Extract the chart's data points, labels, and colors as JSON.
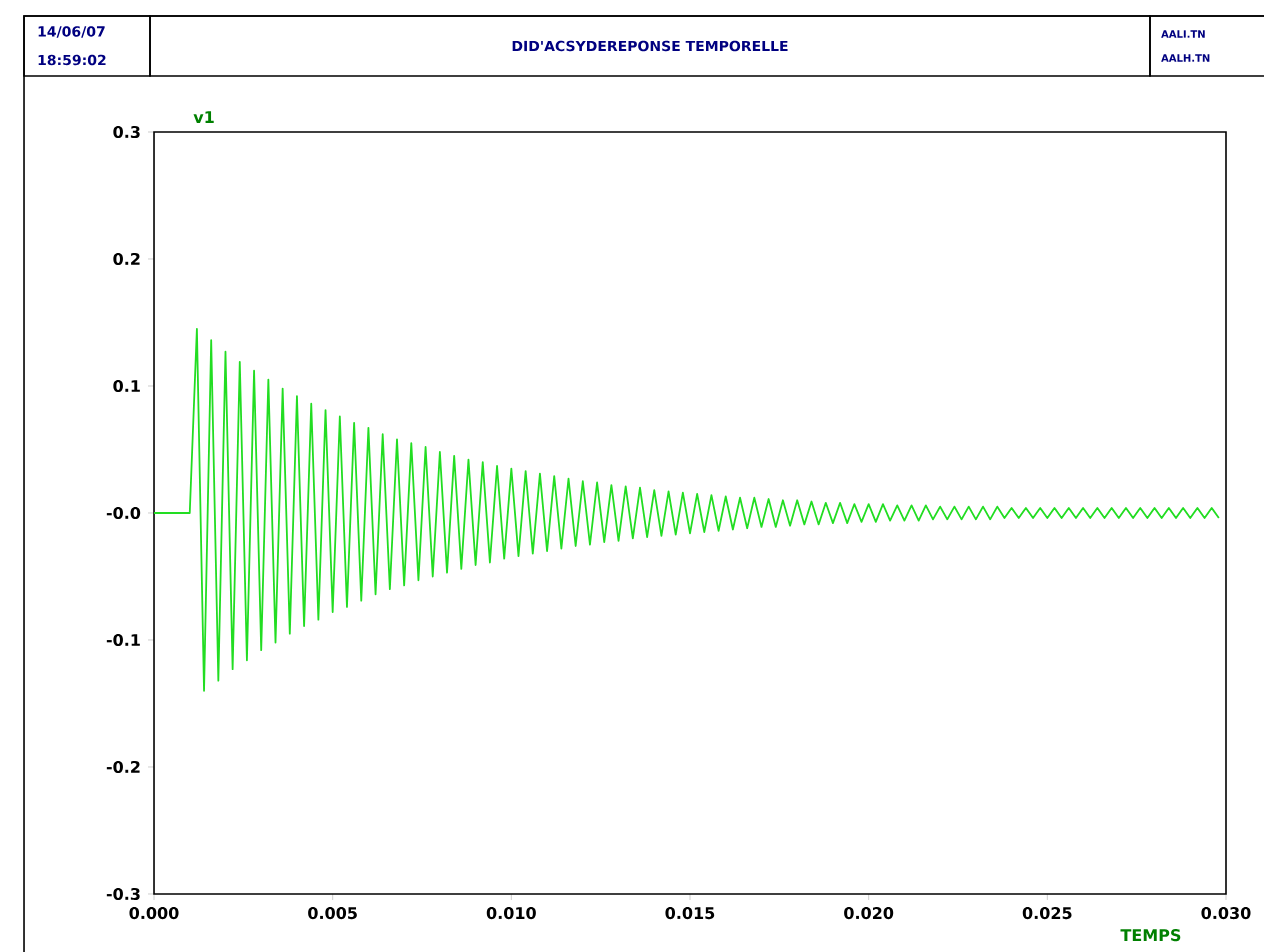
{
  "chart_data": {
    "type": "line",
    "title": "DID'ACSYDEREPONSE TEMPORELLE",
    "xlabel": "TEMPS",
    "ylabel": "v1",
    "annotations": [
      "14/06/07",
      "18:59:02",
      "AALI.TN",
      "AALH.TN"
    ],
    "color": "#22dd22",
    "marker": "none",
    "line_style": "solid",
    "xlim": [
      0,
      0.03
    ],
    "ylim": [
      -0.3,
      0.3
    ],
    "xticks": [
      {
        "value": 0,
        "label": "0.000"
      },
      {
        "value": 0.005,
        "label": "0.005"
      },
      {
        "value": 0.01,
        "label": "0.010"
      },
      {
        "value": 0.015,
        "label": "0.015"
      },
      {
        "value": 0.02,
        "label": "0.020"
      },
      {
        "value": 0.025,
        "label": "0.025"
      },
      {
        "value": 0.03,
        "label": "0.030"
      }
    ],
    "yticks": [
      -0.3,
      -0.2,
      -0.1,
      {
        "value": 0,
        "label": "-0.0"
      },
      0.1,
      0.2,
      0.3
    ],
    "x": [
      0,
      0.001,
      0.0012,
      0.0014,
      0.0016,
      0.0018,
      0.002,
      0.0022,
      0.0024,
      0.0026,
      0.0028,
      0.003,
      0.0032,
      0.0034,
      0.0036,
      0.0038,
      0.004,
      0.0042,
      0.0044,
      0.0046,
      0.0048,
      0.005,
      0.0052,
      0.0054,
      0.0056,
      0.0058,
      0.006,
      0.0062,
      0.0064,
      0.0066,
      0.0068,
      0.007,
      0.0072,
      0.0074,
      0.0076,
      0.0078,
      0.008,
      0.0082,
      0.0084,
      0.0086,
      0.0088,
      0.009,
      0.0092,
      0.0094,
      0.0096,
      0.0098,
      0.01,
      0.0102,
      0.0104,
      0.0106,
      0.0108,
      0.011,
      0.0112,
      0.0114,
      0.0116,
      0.0118,
      0.012,
      0.0122,
      0.0124,
      0.0126,
      0.0128,
      0.013,
      0.0132,
      0.0134,
      0.0136,
      0.0138,
      0.014,
      0.0142,
      0.0144,
      0.0146,
      0.0148,
      0.015,
      0.0152,
      0.0154,
      0.0156,
      0.0158,
      0.016,
      0.0162,
      0.0164,
      0.0166,
      0.0168,
      0.017,
      0.0172,
      0.0174,
      0.0176,
      0.0178,
      0.018,
      0.0182,
      0.0184,
      0.0186,
      0.0188,
      0.019,
      0.0192,
      0.0194,
      0.0196,
      0.0198,
      0.02,
      0.0202,
      0.0204,
      0.0206,
      0.0208,
      0.021,
      0.0212,
      0.0214,
      0.0216,
      0.0218,
      0.022,
      0.0222,
      0.0224,
      0.0226,
      0.0228,
      0.023,
      0.0232,
      0.0234,
      0.0236,
      0.0238,
      0.024,
      0.0242,
      0.0244,
      0.0246,
      0.0248,
      0.025,
      0.0252,
      0.0254,
      0.0256,
      0.0258,
      0.026,
      0.0262,
      0.0264,
      0.0266,
      0.0268,
      0.027,
      0.0272,
      0.0274,
      0.0276,
      0.0278,
      0.028,
      0.0282,
      0.0284,
      0.0286,
      0.0288,
      0.029,
      0.0292,
      0.0294,
      0.0296,
      0.0298
    ],
    "values": [
      0,
      0,
      0.145,
      -0.14,
      0.136,
      -0.132,
      0.127,
      -0.123,
      0.119,
      -0.116,
      0.112,
      -0.108,
      0.105,
      -0.102,
      0.098,
      -0.095,
      0.092,
      -0.089,
      0.086,
      -0.084,
      0.081,
      -0.078,
      0.076,
      -0.074,
      0.071,
      -0.069,
      0.067,
      -0.064,
      0.062,
      -0.06,
      0.058,
      -0.057,
      0.055,
      -0.053,
      0.052,
      -0.05,
      0.048,
      -0.047,
      0.045,
      -0.044,
      0.042,
      -0.041,
      0.04,
      -0.039,
      0.037,
      -0.036,
      0.035,
      -0.034,
      0.033,
      -0.032,
      0.031,
      -0.03,
      0.029,
      -0.028,
      0.027,
      -0.026,
      0.025,
      -0.025,
      0.024,
      -0.023,
      0.022,
      -0.022,
      0.021,
      -0.02,
      0.02,
      -0.019,
      0.018,
      -0.018,
      0.017,
      -0.017,
      0.016,
      -0.016,
      0.015,
      -0.015,
      0.014,
      -0.014,
      0.013,
      -0.013,
      0.012,
      -0.012,
      0.012,
      -0.011,
      0.011,
      -0.011,
      0.01,
      -0.01,
      0.01,
      -0.009,
      0.009,
      -0.009,
      0.008,
      -0.008,
      0.008,
      -0.008,
      0.007,
      -0.007,
      0.007,
      -0.007,
      0.007,
      -0.006,
      0.006,
      -0.006,
      0.006,
      -0.006,
      0.006,
      -0.005,
      0.005,
      -0.005,
      0.005,
      -0.005,
      0.005,
      -0.005,
      0.005,
      -0.005,
      0.005,
      -0.004,
      0.004,
      -0.004,
      0.004,
      -0.004,
      0.004,
      -0.004,
      0.004,
      -0.004,
      0.004,
      -0.004,
      0.004,
      -0.004,
      0.004,
      -0.004,
      0.004,
      -0.004,
      0.004,
      -0.004,
      0.004,
      -0.004,
      0.004,
      -0.004,
      0.004,
      -0.004,
      0.004,
      -0.004,
      0.004,
      -0.004,
      0.004,
      -0.004
    ]
  }
}
